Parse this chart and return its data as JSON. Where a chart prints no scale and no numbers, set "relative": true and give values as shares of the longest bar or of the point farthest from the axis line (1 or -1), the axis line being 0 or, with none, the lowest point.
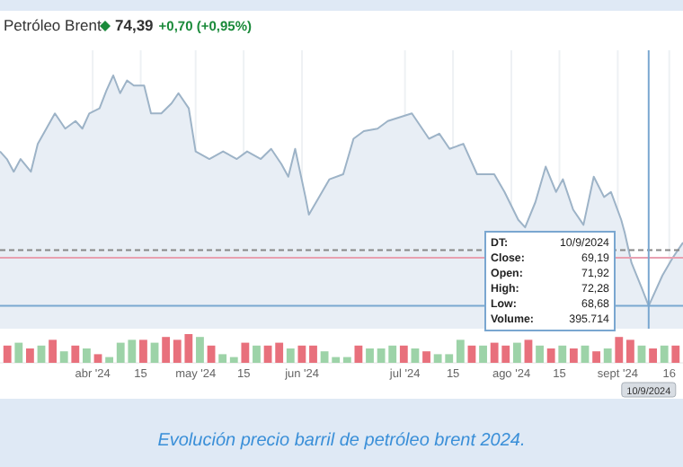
{
  "chart_data": [
    {
      "type": "area",
      "title": "Petróleo Brent",
      "subtitle": "74,39 +0,70 (+0,95%)",
      "relative": true,
      "color": "#9db3c7",
      "grid": "x",
      "x": [
        "2024-03-05",
        "2024-03-07",
        "2024-03-09",
        "2024-03-11",
        "2024-03-14",
        "2024-03-16",
        "2024-03-21",
        "2024-03-24",
        "2024-03-27",
        "2024-03-29",
        "2024-03-31",
        "2024-04-03",
        "2024-04-05",
        "2024-04-07",
        "2024-04-09",
        "2024-04-11",
        "2024-04-13",
        "2024-04-16",
        "2024-04-18",
        "2024-04-21",
        "2024-04-24",
        "2024-04-26",
        "2024-04-29",
        "2024-05-01",
        "2024-05-05",
        "2024-05-09",
        "2024-05-13",
        "2024-05-16",
        "2024-05-20",
        "2024-05-23",
        "2024-05-26",
        "2024-05-28",
        "2024-05-30",
        "2024-06-02",
        "2024-06-03",
        "2024-06-06",
        "2024-06-09",
        "2024-06-13",
        "2024-06-16",
        "2024-06-19",
        "2024-06-23",
        "2024-06-26",
        "2024-07-03",
        "2024-07-08",
        "2024-07-11",
        "2024-07-14",
        "2024-07-18",
        "2024-07-22",
        "2024-07-27",
        "2024-07-30",
        "2024-08-03",
        "2024-08-05",
        "2024-08-08",
        "2024-08-11",
        "2024-08-14",
        "2024-08-16",
        "2024-08-19",
        "2024-08-22",
        "2024-08-25",
        "2024-08-28",
        "2024-08-30",
        "2024-09-02",
        "2024-09-03",
        "2024-09-05",
        "2024-09-08",
        "2024-09-10",
        "2024-09-14",
        "2024-09-17",
        "2024-09-20"
      ],
      "values": [
        0.7,
        0.67,
        0.62,
        0.67,
        0.62,
        0.73,
        0.85,
        0.79,
        0.82,
        0.79,
        0.85,
        0.87,
        0.94,
        1.0,
        0.93,
        0.98,
        0.96,
        0.96,
        0.85,
        0.85,
        0.89,
        0.93,
        0.87,
        0.7,
        0.67,
        0.7,
        0.67,
        0.7,
        0.67,
        0.71,
        0.65,
        0.6,
        0.71,
        0.52,
        0.45,
        0.52,
        0.59,
        0.61,
        0.75,
        0.78,
        0.79,
        0.82,
        0.85,
        0.75,
        0.77,
        0.71,
        0.73,
        0.61,
        0.61,
        0.54,
        0.43,
        0.4,
        0.5,
        0.64,
        0.54,
        0.59,
        0.47,
        0.41,
        0.6,
        0.52,
        0.54,
        0.43,
        0.38,
        0.26,
        0.16,
        0.09,
        0.21,
        0.28,
        0.34
      ],
      "xlim": [
        "2024-03-05",
        "2024-09-20"
      ],
      "xticks": [
        {
          "value": "2024-04-01",
          "label": "abr '24"
        },
        {
          "value": "2024-04-15",
          "label": "15"
        },
        {
          "value": "2024-05-01",
          "label": "may '24"
        },
        {
          "value": "2024-05-15",
          "label": "15"
        },
        {
          "value": "2024-06-01",
          "label": "jun '24"
        },
        {
          "value": "2024-07-01",
          "label": "jul '24"
        },
        {
          "value": "2024-07-15",
          "label": "15"
        },
        {
          "value": "2024-08-01",
          "label": "ago '24"
        },
        {
          "value": "2024-08-15",
          "label": "15"
        },
        {
          "value": "2024-09-01",
          "label": "sept '24"
        },
        {
          "value": "2024-09-16",
          "label": "16"
        }
      ],
      "ref_lines": [
        {
          "axis": "y",
          "value": 0.31,
          "color": "#888888",
          "line_style": "dashed"
        },
        {
          "axis": "y",
          "value": 0.28,
          "color": "#e8a0b0",
          "line_style": "solid"
        },
        {
          "axis": "y",
          "value": 0.09,
          "color": "#7aa7d0",
          "line_style": "solid"
        },
        {
          "axis": "x",
          "value": "2024-09-10",
          "color": "#7aa7d0",
          "line_style": "solid"
        }
      ],
      "annotations": [
        "DT: 10/9/2024",
        "Close: 69,19",
        "Open: 71,92",
        "High: 72,28",
        "Low: 68,68",
        "Volume: 395.714",
        "10/9/2024",
        "Evolución precio barril de petróleo brent 2024."
      ]
    },
    {
      "type": "bar",
      "relative": true,
      "categories": [
        null,
        null,
        null,
        null,
        null,
        null,
        null,
        null,
        null,
        null,
        null,
        null,
        null,
        null,
        null,
        null,
        null,
        null,
        null,
        null,
        null,
        null,
        null,
        null,
        null,
        null,
        null,
        null,
        null,
        null,
        null,
        null,
        null,
        null,
        null,
        null,
        null,
        null,
        null,
        null,
        null,
        null,
        null,
        null,
        null,
        null,
        null,
        null,
        null,
        null,
        null,
        null,
        null,
        null,
        null,
        null,
        null,
        null,
        null,
        null
      ],
      "values": [
        0.6,
        0.7,
        0.5,
        0.6,
        0.8,
        0.4,
        0.6,
        0.5,
        0.3,
        0.2,
        0.7,
        0.8,
        0.8,
        0.7,
        0.9,
        0.8,
        1.0,
        0.9,
        0.6,
        0.3,
        0.2,
        0.7,
        0.6,
        0.6,
        0.7,
        0.5,
        0.6,
        0.6,
        0.4,
        0.2,
        0.2,
        0.6,
        0.5,
        0.5,
        0.6,
        0.6,
        0.5,
        0.4,
        0.3,
        0.3,
        0.8,
        0.6,
        0.6,
        0.7,
        0.6,
        0.7,
        0.8,
        0.6,
        0.5,
        0.6,
        0.5,
        0.6,
        0.4,
        0.5,
        0.9,
        0.8,
        0.6,
        0.5,
        0.6,
        0.6
      ],
      "colors": [
        "#e8707c",
        "#9dd3a8",
        "#e8707c",
        "#9dd3a8",
        "#e8707c",
        "#9dd3a8",
        "#e8707c",
        "#9dd3a8",
        "#e8707c",
        "#9dd3a8",
        "#9dd3a8",
        "#9dd3a8",
        "#e8707c",
        "#9dd3a8",
        "#e8707c",
        "#e8707c",
        "#e8707c",
        "#9dd3a8",
        "#e8707c",
        "#9dd3a8",
        "#9dd3a8",
        "#e8707c",
        "#9dd3a8",
        "#e8707c",
        "#e8707c",
        "#9dd3a8",
        "#e8707c",
        "#e8707c",
        "#9dd3a8",
        "#9dd3a8",
        "#9dd3a8",
        "#e8707c",
        "#9dd3a8",
        "#9dd3a8",
        "#9dd3a8",
        "#e8707c",
        "#9dd3a8",
        "#e8707c",
        "#9dd3a8",
        "#9dd3a8",
        "#9dd3a8",
        "#e8707c",
        "#9dd3a8",
        "#e8707c",
        "#e8707c",
        "#9dd3a8",
        "#e8707c",
        "#9dd3a8",
        "#e8707c",
        "#9dd3a8",
        "#e8707c",
        "#9dd3a8",
        "#e8707c",
        "#9dd3a8",
        "#e8707c",
        "#e8707c",
        "#9dd3a8",
        "#e8707c",
        "#9dd3a8",
        "#e8707c"
      ]
    }
  ]
}
